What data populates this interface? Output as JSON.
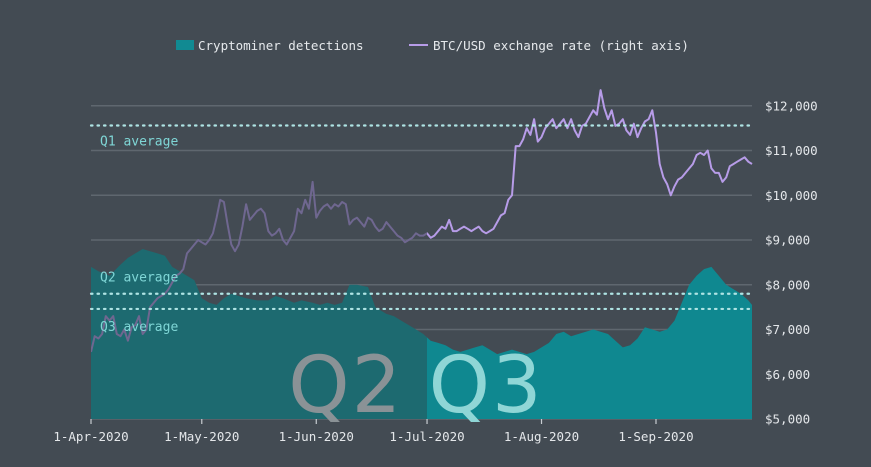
{
  "chart_data": {
    "type": "area",
    "legend": {
      "placement": "top-center",
      "items": [
        {
          "label": "Cryptominer detections",
          "color": "#118a92",
          "kind": "area"
        },
        {
          "label": "BTC/USD exchange rate (right axis)",
          "color": "#b79ce8",
          "kind": "line"
        }
      ]
    },
    "x_ticks": [
      "1-Apr-2020",
      "1-May-2020",
      "1-Jun-2020",
      "1-Jul-2020",
      "1-Aug-2020",
      "1-Sep-2020"
    ],
    "x_tick_days": [
      0,
      30,
      61,
      91,
      122,
      153
    ],
    "x_range_days": [
      0,
      179
    ],
    "y_right": {
      "min": 5000,
      "max": 12800,
      "ticks": [
        5000,
        6000,
        7000,
        8000,
        9000,
        10000,
        11000,
        12000
      ],
      "tick_labels": [
        "$5,000",
        "$6,000",
        "$7,000",
        "$8,000",
        "$9,000",
        "$10,000",
        "$11,000",
        "$12,000"
      ]
    },
    "grid": true,
    "highlighted_period_start_day": 91,
    "quarter_labels": [
      {
        "text": "Q2",
        "day": 69
      },
      {
        "text": "Q3",
        "day": 107
      }
    ],
    "averages": [
      {
        "label": "Q1 average",
        "value": 11560
      },
      {
        "label": "Q2 average",
        "value": 7800
      },
      {
        "label": "Q3 average",
        "value": 7460
      }
    ],
    "series": [
      {
        "name": "Cryptominer detections",
        "kind": "area",
        "scale_note": "unlabeled left scale; values shown against right-axis grid",
        "points": [
          [
            0,
            8400
          ],
          [
            2,
            8300
          ],
          [
            5,
            8200
          ],
          [
            8,
            8450
          ],
          [
            10,
            8600
          ],
          [
            12,
            8700
          ],
          [
            14,
            8800
          ],
          [
            16,
            8750
          ],
          [
            18,
            8700
          ],
          [
            20,
            8650
          ],
          [
            22,
            8400
          ],
          [
            24,
            8300
          ],
          [
            26,
            8200
          ],
          [
            28,
            8100
          ],
          [
            30,
            7700
          ],
          [
            32,
            7600
          ],
          [
            34,
            7550
          ],
          [
            36,
            7700
          ],
          [
            38,
            7800
          ],
          [
            40,
            7750
          ],
          [
            42,
            7700
          ],
          [
            45,
            7650
          ],
          [
            48,
            7650
          ],
          [
            50,
            7750
          ],
          [
            52,
            7700
          ],
          [
            55,
            7600
          ],
          [
            57,
            7650
          ],
          [
            60,
            7600
          ],
          [
            62,
            7550
          ],
          [
            64,
            7600
          ],
          [
            66,
            7550
          ],
          [
            68,
            7600
          ],
          [
            70,
            8000
          ],
          [
            72,
            8000
          ],
          [
            75,
            7950
          ],
          [
            77,
            7500
          ],
          [
            80,
            7350
          ],
          [
            82,
            7300
          ],
          [
            84,
            7200
          ],
          [
            86,
            7100
          ],
          [
            88,
            7000
          ],
          [
            90,
            6900
          ],
          [
            92,
            6750
          ],
          [
            94,
            6700
          ],
          [
            96,
            6650
          ],
          [
            98,
            6550
          ],
          [
            100,
            6500
          ],
          [
            102,
            6550
          ],
          [
            104,
            6600
          ],
          [
            106,
            6650
          ],
          [
            108,
            6550
          ],
          [
            110,
            6450
          ],
          [
            112,
            6500
          ],
          [
            114,
            6550
          ],
          [
            116,
            6500
          ],
          [
            118,
            6450
          ],
          [
            120,
            6500
          ],
          [
            122,
            6600
          ],
          [
            124,
            6700
          ],
          [
            126,
            6900
          ],
          [
            128,
            6950
          ],
          [
            130,
            6850
          ],
          [
            132,
            6900
          ],
          [
            134,
            6950
          ],
          [
            136,
            7000
          ],
          [
            138,
            6950
          ],
          [
            140,
            6900
          ],
          [
            142,
            6750
          ],
          [
            144,
            6600
          ],
          [
            146,
            6650
          ],
          [
            148,
            6800
          ],
          [
            150,
            7050
          ],
          [
            152,
            7000
          ],
          [
            154,
            6950
          ],
          [
            156,
            7000
          ],
          [
            158,
            7200
          ],
          [
            160,
            7600
          ],
          [
            162,
            8000
          ],
          [
            164,
            8200
          ],
          [
            166,
            8350
          ],
          [
            168,
            8400
          ],
          [
            170,
            8200
          ],
          [
            172,
            8000
          ],
          [
            174,
            7900
          ],
          [
            176,
            7800
          ],
          [
            178,
            7650
          ],
          [
            179,
            7550
          ]
        ]
      },
      {
        "name": "BTC/USD exchange rate (right axis)",
        "kind": "line",
        "points": [
          [
            0,
            6500
          ],
          [
            1,
            6850
          ],
          [
            2,
            6800
          ],
          [
            3,
            6900
          ],
          [
            4,
            7300
          ],
          [
            5,
            7200
          ],
          [
            6,
            7300
          ],
          [
            7,
            6900
          ],
          [
            8,
            6850
          ],
          [
            9,
            7000
          ],
          [
            10,
            6750
          ],
          [
            11,
            7050
          ],
          [
            12,
            7100
          ],
          [
            13,
            7300
          ],
          [
            14,
            6900
          ],
          [
            15,
            7000
          ],
          [
            16,
            7500
          ],
          [
            17,
            7600
          ],
          [
            18,
            7700
          ],
          [
            19,
            7750
          ],
          [
            20,
            7800
          ],
          [
            21,
            7900
          ],
          [
            22,
            8050
          ],
          [
            23,
            8200
          ],
          [
            24,
            8250
          ],
          [
            25,
            8350
          ],
          [
            26,
            8700
          ],
          [
            27,
            8800
          ],
          [
            28,
            8900
          ],
          [
            29,
            9000
          ],
          [
            30,
            8950
          ],
          [
            31,
            8900
          ],
          [
            32,
            9000
          ],
          [
            33,
            9150
          ],
          [
            34,
            9500
          ],
          [
            35,
            9900
          ],
          [
            36,
            9850
          ],
          [
            37,
            9350
          ],
          [
            38,
            8900
          ],
          [
            39,
            8750
          ],
          [
            40,
            8900
          ],
          [
            41,
            9300
          ],
          [
            42,
            9800
          ],
          [
            43,
            9450
          ],
          [
            44,
            9550
          ],
          [
            45,
            9650
          ],
          [
            46,
            9700
          ],
          [
            47,
            9600
          ],
          [
            48,
            9200
          ],
          [
            49,
            9100
          ],
          [
            50,
            9150
          ],
          [
            51,
            9250
          ],
          [
            52,
            9000
          ],
          [
            53,
            8900
          ],
          [
            54,
            9050
          ],
          [
            55,
            9200
          ],
          [
            56,
            9700
          ],
          [
            57,
            9600
          ],
          [
            58,
            9900
          ],
          [
            59,
            9700
          ],
          [
            60,
            10300
          ],
          [
            61,
            9500
          ],
          [
            62,
            9650
          ],
          [
            63,
            9750
          ],
          [
            64,
            9800
          ],
          [
            65,
            9700
          ],
          [
            66,
            9800
          ],
          [
            67,
            9750
          ],
          [
            68,
            9850
          ],
          [
            69,
            9800
          ],
          [
            70,
            9350
          ],
          [
            71,
            9450
          ],
          [
            72,
            9500
          ],
          [
            73,
            9400
          ],
          [
            74,
            9300
          ],
          [
            75,
            9500
          ],
          [
            76,
            9450
          ],
          [
            77,
            9300
          ],
          [
            78,
            9200
          ],
          [
            79,
            9250
          ],
          [
            80,
            9400
          ],
          [
            81,
            9300
          ],
          [
            82,
            9200
          ],
          [
            83,
            9100
          ],
          [
            84,
            9050
          ],
          [
            85,
            8950
          ],
          [
            86,
            9000
          ],
          [
            87,
            9050
          ],
          [
            88,
            9150
          ],
          [
            89,
            9100
          ],
          [
            90,
            9100
          ],
          [
            91,
            9150
          ],
          [
            92,
            9050
          ],
          [
            93,
            9100
          ],
          [
            94,
            9200
          ],
          [
            95,
            9300
          ],
          [
            96,
            9250
          ],
          [
            97,
            9450
          ],
          [
            98,
            9200
          ],
          [
            99,
            9200
          ],
          [
            100,
            9250
          ],
          [
            101,
            9300
          ],
          [
            102,
            9250
          ],
          [
            103,
            9200
          ],
          [
            104,
            9250
          ],
          [
            105,
            9300
          ],
          [
            106,
            9200
          ],
          [
            107,
            9150
          ],
          [
            108,
            9200
          ],
          [
            109,
            9250
          ],
          [
            110,
            9400
          ],
          [
            111,
            9550
          ],
          [
            112,
            9600
          ],
          [
            113,
            9900
          ],
          [
            114,
            10000
          ],
          [
            115,
            11100
          ],
          [
            116,
            11100
          ],
          [
            117,
            11250
          ],
          [
            118,
            11500
          ],
          [
            119,
            11350
          ],
          [
            120,
            11700
          ],
          [
            121,
            11200
          ],
          [
            122,
            11300
          ],
          [
            123,
            11500
          ],
          [
            124,
            11600
          ],
          [
            125,
            11700
          ],
          [
            126,
            11500
          ],
          [
            127,
            11600
          ],
          [
            128,
            11700
          ],
          [
            129,
            11500
          ],
          [
            130,
            11700
          ],
          [
            131,
            11450
          ],
          [
            132,
            11300
          ],
          [
            133,
            11550
          ],
          [
            134,
            11600
          ],
          [
            135,
            11750
          ],
          [
            136,
            11900
          ],
          [
            137,
            11800
          ],
          [
            138,
            12350
          ],
          [
            139,
            11950
          ],
          [
            140,
            11700
          ],
          [
            141,
            11900
          ],
          [
            142,
            11550
          ],
          [
            143,
            11600
          ],
          [
            144,
            11700
          ],
          [
            145,
            11450
          ],
          [
            146,
            11350
          ],
          [
            147,
            11600
          ],
          [
            148,
            11300
          ],
          [
            149,
            11500
          ],
          [
            150,
            11650
          ],
          [
            151,
            11700
          ],
          [
            152,
            11900
          ],
          [
            153,
            11400
          ],
          [
            154,
            10700
          ],
          [
            155,
            10400
          ],
          [
            156,
            10250
          ],
          [
            157,
            10000
          ],
          [
            158,
            10200
          ],
          [
            159,
            10350
          ],
          [
            160,
            10400
          ],
          [
            161,
            10500
          ],
          [
            162,
            10600
          ],
          [
            163,
            10700
          ],
          [
            164,
            10900
          ],
          [
            165,
            10950
          ],
          [
            166,
            10900
          ],
          [
            167,
            11000
          ],
          [
            168,
            10600
          ],
          [
            169,
            10500
          ],
          [
            170,
            10500
          ],
          [
            171,
            10300
          ],
          [
            172,
            10400
          ],
          [
            173,
            10650
          ],
          [
            174,
            10700
          ],
          [
            175,
            10750
          ],
          [
            176,
            10800
          ],
          [
            177,
            10850
          ],
          [
            178,
            10750
          ],
          [
            179,
            10700
          ]
        ]
      }
    ]
  }
}
